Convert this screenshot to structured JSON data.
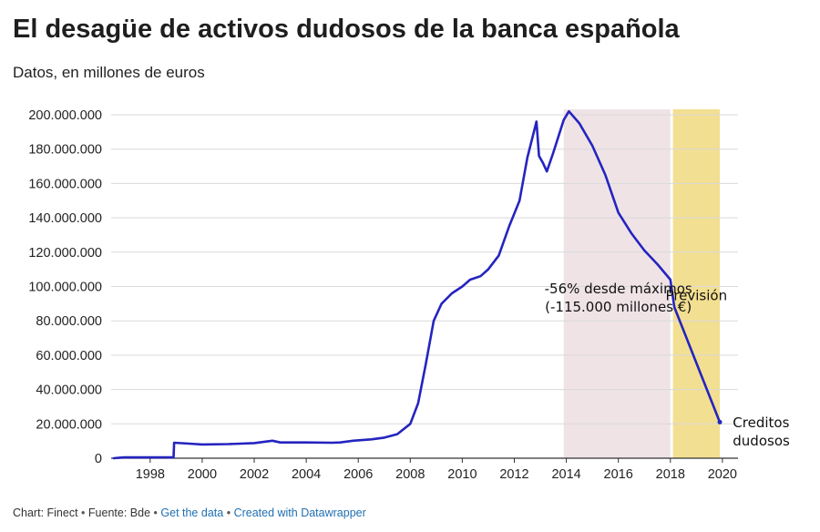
{
  "header": {
    "title": "El desagüe de activos dudosos de la banca española",
    "subtitle": "Datos, en millones de euros"
  },
  "footer": {
    "chart": "Chart: Finect",
    "source": "Fuente: Bde",
    "get_data": "Get the data",
    "created": "Created with Datawrapper",
    "separator": "•"
  },
  "colors": {
    "line": "#2424c0",
    "highlight_pink": "#ead9de",
    "highlight_forecast": "#f1d97e",
    "grid": "#d9d9d9"
  },
  "chart_data": {
    "type": "line",
    "title": "El desagüe de activos dudosos de la banca española",
    "subtitle": "Datos, en millones de euros",
    "xlabel": "",
    "ylabel": "",
    "xlim": [
      1996.5,
      2020.6
    ],
    "ylim": [
      0,
      200000000
    ],
    "y_ticks": [
      0,
      20000000,
      40000000,
      60000000,
      80000000,
      100000000,
      120000000,
      140000000,
      160000000,
      180000000,
      200000000
    ],
    "y_tick_labels": [
      "0",
      "20.000.000",
      "40.000.000",
      "60.000.000",
      "80.000.000",
      "100.000.000",
      "120.000.000",
      "140.000.000",
      "160.000.000",
      "180.000.000",
      "200.000.000"
    ],
    "x_ticks": [
      1998,
      2000,
      2002,
      2004,
      2006,
      2008,
      2010,
      2012,
      2014,
      2016,
      2018,
      2020
    ],
    "x_tick_labels": [
      "1998",
      "2000",
      "2002",
      "2004",
      "2006",
      "2008",
      "2010",
      "2012",
      "2014",
      "2016",
      "2018",
      "2020"
    ],
    "grid": true,
    "legend": "none",
    "highlight_ranges": [
      {
        "from": 2013.9,
        "to": 2018.0,
        "kind": "pink"
      },
      {
        "from": 2018.1,
        "to": 2019.9,
        "kind": "forecast"
      }
    ],
    "series": [
      {
        "name": "Creditos dudosos",
        "points": [
          [
            1996.6,
            0
          ],
          [
            1997.0,
            500000
          ],
          [
            1998.0,
            500000
          ],
          [
            1998.9,
            500000
          ],
          [
            1998.92,
            9000000
          ],
          [
            1999.5,
            8500000
          ],
          [
            2000.0,
            8000000
          ],
          [
            2001.0,
            8200000
          ],
          [
            2002.0,
            8800000
          ],
          [
            2002.7,
            10200000
          ],
          [
            2003.0,
            9200000
          ],
          [
            2004.0,
            9200000
          ],
          [
            2005.0,
            9000000
          ],
          [
            2005.3,
            9200000
          ],
          [
            2005.8,
            10200000
          ],
          [
            2006.5,
            11000000
          ],
          [
            2007.0,
            12000000
          ],
          [
            2007.5,
            14000000
          ],
          [
            2008.0,
            20000000
          ],
          [
            2008.3,
            32000000
          ],
          [
            2008.6,
            55000000
          ],
          [
            2008.9,
            80000000
          ],
          [
            2009.2,
            90000000
          ],
          [
            2009.6,
            96000000
          ],
          [
            2010.0,
            100000000
          ],
          [
            2010.3,
            104000000
          ],
          [
            2010.7,
            106000000
          ],
          [
            2011.0,
            110000000
          ],
          [
            2011.4,
            118000000
          ],
          [
            2011.8,
            135000000
          ],
          [
            2012.2,
            150000000
          ],
          [
            2012.5,
            175000000
          ],
          [
            2012.85,
            196000000
          ],
          [
            2012.95,
            176000000
          ],
          [
            2013.1,
            172000000
          ],
          [
            2013.25,
            167000000
          ],
          [
            2013.5,
            178000000
          ],
          [
            2013.9,
            197000000
          ],
          [
            2014.1,
            202000000
          ],
          [
            2014.5,
            195000000
          ],
          [
            2015.0,
            182000000
          ],
          [
            2015.5,
            165000000
          ],
          [
            2016.0,
            143000000
          ],
          [
            2016.5,
            131000000
          ],
          [
            2017.0,
            121000000
          ],
          [
            2017.5,
            113000000
          ],
          [
            2018.0,
            104000000
          ],
          [
            2018.15,
            88000000
          ],
          [
            2019.9,
            21000000
          ]
        ]
      }
    ],
    "annotations": [
      {
        "text_lines": [
          "-56% desde máximos",
          "(-115.000 millones €)"
        ],
        "x": 2016.0,
        "y": 96000000,
        "anchor": "middle"
      },
      {
        "text_lines": [
          "Previsión"
        ],
        "x": 2019.0,
        "y": 92000000,
        "anchor": "middle"
      },
      {
        "text_lines": [
          "Creditos",
          "dudosos"
        ],
        "x": 2020.4,
        "y": 18000000,
        "anchor": "start"
      }
    ]
  }
}
